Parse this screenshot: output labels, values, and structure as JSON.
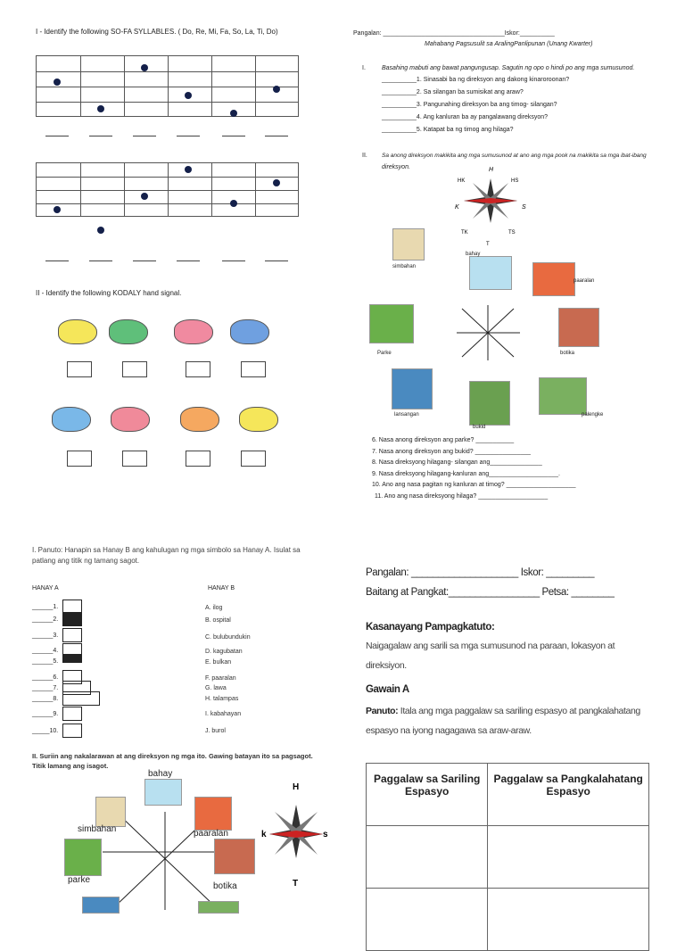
{
  "q1": {
    "title": "I - Identify the following SO-FA SYLLABLES. ( Do, Re, Mi, Fa, So, La, Ti, Do)",
    "section2": "II - Identify the following KODALY hand signal."
  },
  "q2": {
    "name_label": "Pangalan: ___________________________________Iskor:__________",
    "subtitle": "Mahabang Pagsusulit sa AralingPanlipunan (Unang Kwarter)",
    "part1_num": "I.",
    "part1_instr": "Basahing mabuti ang bawat pangungusap. Sagutin ng opo o hindi po ang mga sumusunod.",
    "part1_items": [
      "__________1. Sinasabi ba ng direksyon ang dakong kinaroroonan?",
      "__________2. Sa silangan ba sumisikat ang araw?",
      "__________3. Pangunahing direksyon ba ang timog- silangan?",
      "__________4. Ang kanluran ba ay pangalawang direksyon?",
      "__________5. Katapat ba ng timog ang hilaga?"
    ],
    "part2_num": "II.",
    "part2_instr": "Sa anong direksyon makikita ang mga sumusunod at ano ang mga pook na makikita sa mga ibat-ibang",
    "part2_instr2": "direksyon.",
    "compass": {
      "n": "H",
      "ne": "HS",
      "nw": "HK",
      "w": "K",
      "e": "S",
      "sw": "TK",
      "se": "TS",
      "s": "T"
    },
    "places": {
      "simbahan": "simbahan",
      "bahay": "bahay",
      "paaralan": "paaralan",
      "parke": "Parke",
      "botika": "botika",
      "lansangan": "lansangan",
      "bukid": "bukid",
      "palengke": "palengke"
    },
    "part2_items": [
      "6.   Nasa anong direksyon ang parke? ___________",
      "7. Nasa anong direksyon ang bukid? ________________",
      "8. Nasa direksyong hilagang- silangan ang_______________",
      "9. Nasa direksyong hilagang-kanluran ang____________________.",
      "10. Ano ang nasa pagitan ng kanluran at timog? ____________________",
      "11. Ano ang nasa direksyong hilaga? ____________________"
    ]
  },
  "q3": {
    "instr1": "I. Panuto: Hanapin sa Hanay B ang kahulugan ng mga simbolo sa Hanay A.  Isulat sa",
    "instr2": "patlang ang titik ng tamang sagot.",
    "col_a": "HANAY A",
    "col_b": "HANAY B",
    "a_items": [
      "______1.",
      "______2.",
      "______3.",
      "______4.",
      "______5.",
      "______6.",
      "______7.",
      "______8.",
      "______9.",
      "_____10."
    ],
    "b_items": [
      "A. ilog",
      "B. ospital",
      "C. bulubundukin",
      "D. kagubatan",
      "E. bulkan",
      "F. paaralan",
      "G. lawa",
      "H. talampas",
      "I. kabahayan",
      "J. burol"
    ],
    "part2_1": "II. Suriin ang nakalarawan at ang direksyon ng mga ito. Gawing batayan ito sa pagsagot.",
    "part2_2": "Titik lamang ang isagot.",
    "places": {
      "bahay": "bahay",
      "simbahan": "simbahan",
      "paaralan": "paaralan",
      "parke": "parke",
      "botika": "botika"
    },
    "compass": {
      "n": "H",
      "w": "k",
      "e": "s",
      "s": "T"
    }
  },
  "q4": {
    "name": "Pangalan: ____________________ Iskor: _________",
    "grade": "Baitang at Pangkat:_________________ Petsa: ________",
    "skill_title": "Kasanayang Pampagkatuto:",
    "skill1": "Naigagalaw ang sarili sa mga sumusunod na paraan, lokasyon at",
    "skill2": "direksiyon.",
    "gawain": "Gawain A",
    "panuto_label": "Panuto:",
    "panuto1": " Itala ang mga paggalaw sa sariling espasyo at pangkalahatang",
    "panuto2": "espasyo na iyong nagagawa sa araw-araw.",
    "table_headers": [
      "Paggalaw sa Sariling Espasyo",
      "Paggalaw sa Pangkalahatang Espasyo"
    ]
  }
}
